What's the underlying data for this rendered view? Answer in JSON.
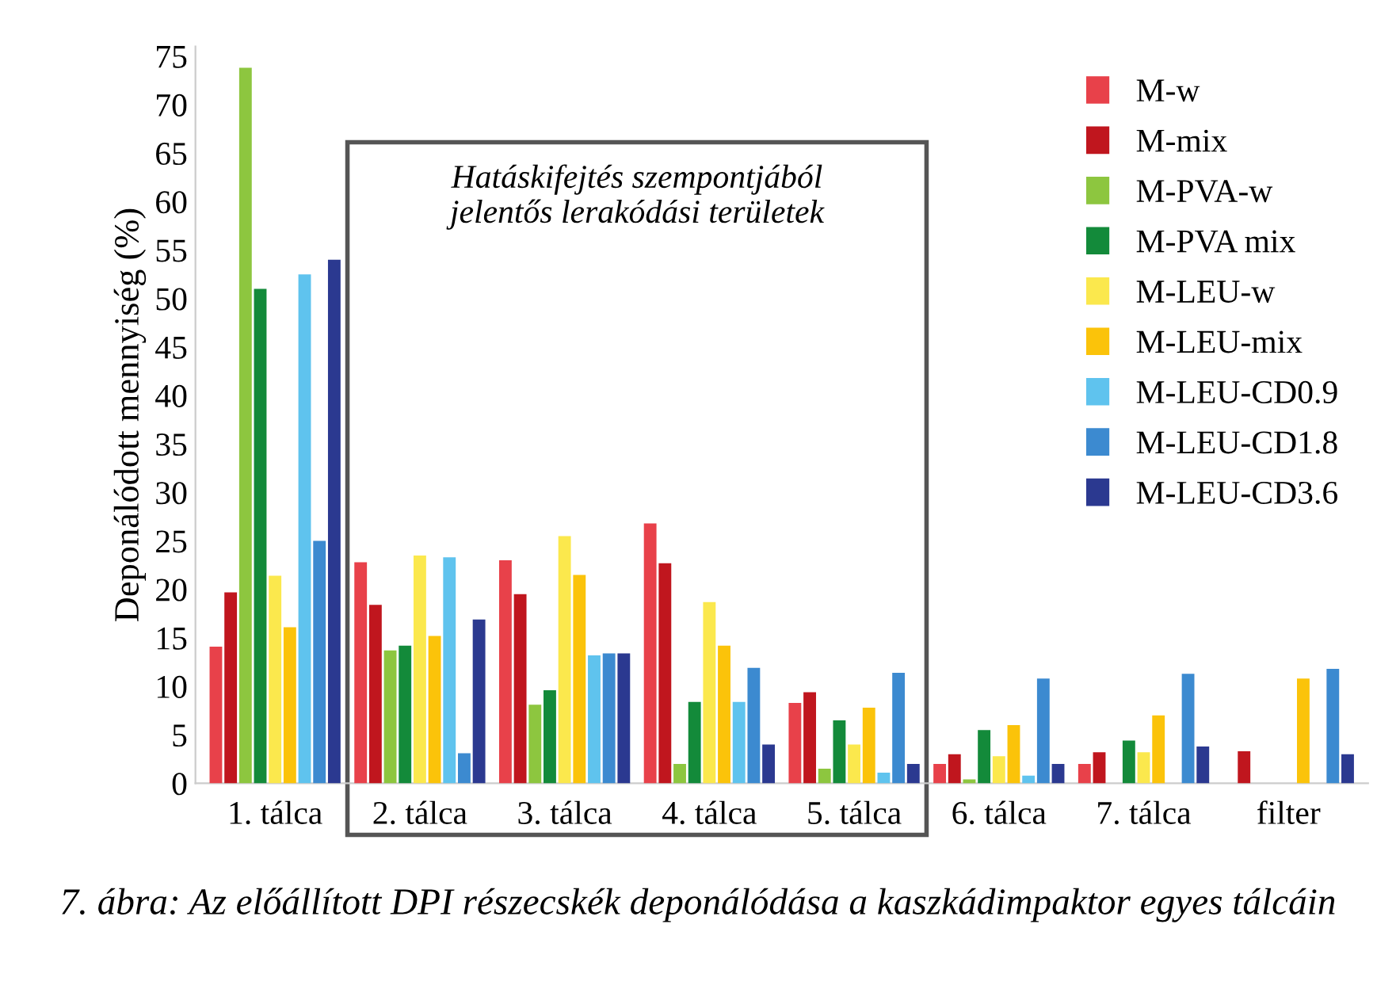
{
  "chart_data": {
    "type": "bar",
    "ylabel": "Deponálódott mennyiség (%)",
    "categories": [
      "1. tálca",
      "2. tálca",
      "3. tálca",
      "4. tálca",
      "5. tálca",
      "6. tálca",
      "7. tálca",
      "filter"
    ],
    "series": [
      {
        "name": "M-w",
        "color": "#e8414a",
        "values": [
          14.1,
          22.8,
          23,
          26.8,
          8.3,
          2,
          2,
          0
        ]
      },
      {
        "name": "M-mix",
        "color": "#c0161e",
        "values": [
          19.7,
          18.4,
          19.5,
          22.7,
          9.4,
          3,
          3.2,
          3.3
        ]
      },
      {
        "name": "M-PVA-w",
        "color": "#8dc63f",
        "values": [
          73.8,
          13.7,
          8.1,
          2,
          1.5,
          0.4,
          null,
          0
        ]
      },
      {
        "name": "M-PVA mix",
        "color": "#138a3a",
        "values": [
          51,
          14.2,
          9.6,
          8.4,
          6.5,
          5.5,
          4.4,
          0
        ]
      },
      {
        "name": "M-LEU-w",
        "color": "#fbe84d",
        "values": [
          21.4,
          23.5,
          25.5,
          18.7,
          4,
          2.8,
          3.2,
          0
        ]
      },
      {
        "name": "M-LEU-mix",
        "color": "#fbc30a",
        "values": [
          16.1,
          15.2,
          21.5,
          14.2,
          7.8,
          6,
          7,
          10.8
        ]
      },
      {
        "name": "M-LEU-CD0.9",
        "color": "#5fc3ee",
        "values": [
          52.5,
          23.3,
          13.2,
          8.4,
          1.1,
          0.8,
          null,
          0
        ]
      },
      {
        "name": "M-LEU-CD1.8",
        "color": "#3c8ad0",
        "values": [
          25,
          3.1,
          13.4,
          11.9,
          11.4,
          10.8,
          11.3,
          11.8
        ]
      },
      {
        "name": "M-LEU-CD3.6",
        "color": "#2b3990",
        "values": [
          54,
          16.9,
          13.4,
          4,
          2,
          2,
          3.8,
          3
        ]
      }
    ],
    "ylim": [
      0,
      76
    ],
    "yticks": [
      0,
      5,
      10,
      15,
      20,
      25,
      30,
      35,
      40,
      45,
      50,
      55,
      60,
      65,
      70,
      75
    ],
    "grid": false,
    "legend": "top right",
    "annotations": [
      "Hatáskifejtés szempontjából\njelentős lerakódási területek",
      "7. ábra: Az előállított DPI részecskék deponálódása a kaszkádimpaktor egyes tálcáin"
    ]
  }
}
